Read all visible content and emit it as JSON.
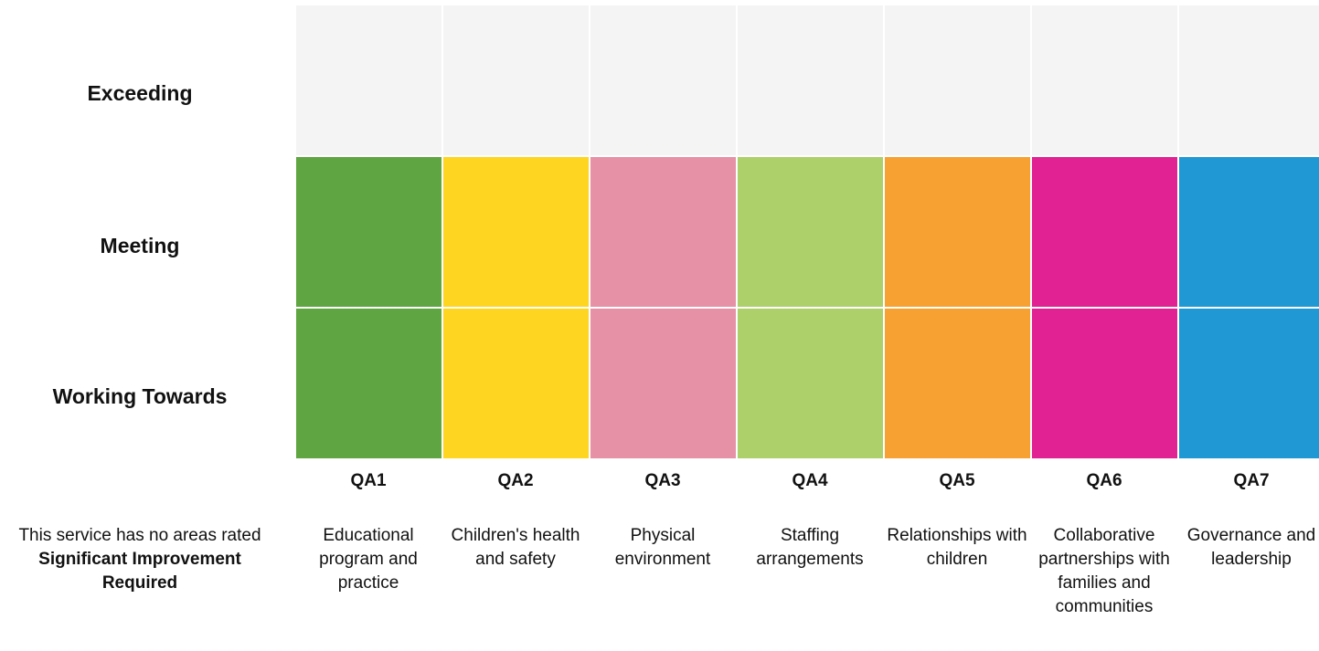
{
  "chart_data": {
    "type": "heatmap",
    "rows": [
      "Exceeding",
      "Meeting",
      "Working Towards"
    ],
    "columns": [
      {
        "code": "QA1",
        "name": "Educational program and practice",
        "color": "#5fa541",
        "rating": "Meeting"
      },
      {
        "code": "QA2",
        "name": "Children's health and safety",
        "color": "#fed520",
        "rating": "Meeting"
      },
      {
        "code": "QA3",
        "name": "Physical environment",
        "color": "#e691a6",
        "rating": "Meeting"
      },
      {
        "code": "QA4",
        "name": "Staffing arrangements",
        "color": "#aed06a",
        "rating": "Meeting"
      },
      {
        "code": "QA5",
        "name": "Relationships with children",
        "color": "#f7a133",
        "rating": "Meeting"
      },
      {
        "code": "QA6",
        "name": "Collaborative partnerships with families and communities",
        "color": "#e12292",
        "rating": "Meeting"
      },
      {
        "code": "QA7",
        "name": "Governance and leadership",
        "color": "#2098d3",
        "rating": "Meeting"
      }
    ],
    "empty_color": "#f4f4f4"
  },
  "note": {
    "text": "This service has no areas rated",
    "bold": "Significant Improvement Required"
  }
}
